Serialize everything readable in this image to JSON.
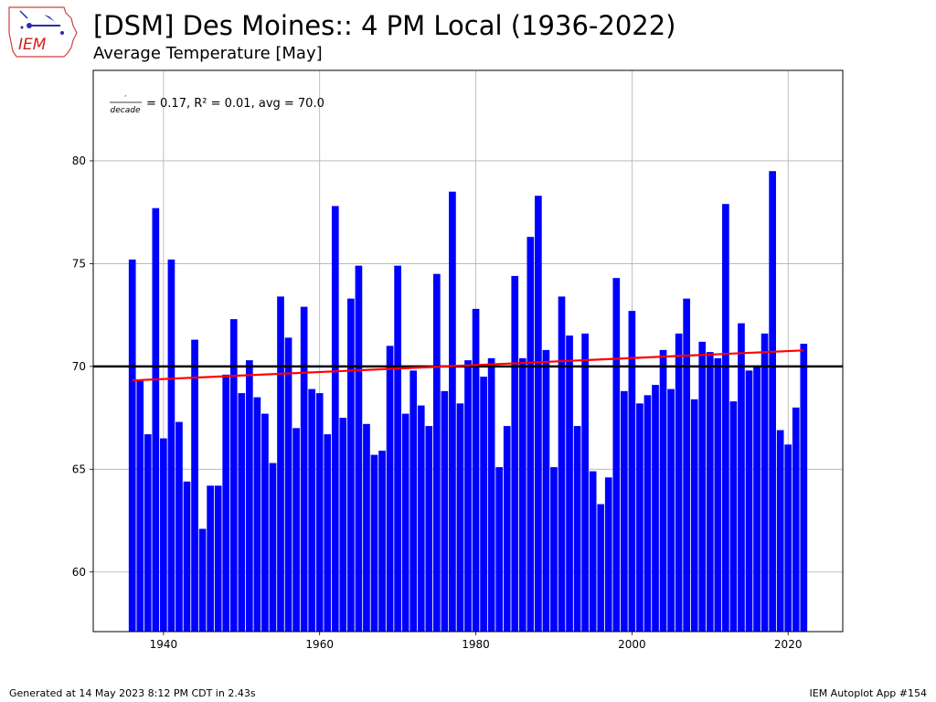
{
  "header": {
    "title": "[DSM] Des Moines:: 4 PM Local (1936-2022)",
    "subtitle": "Average Temperature [May]"
  },
  "logo": {
    "icon": "iem-logo-icon",
    "text": "IEM"
  },
  "footer": {
    "generated": "Generated at 14 May 2023 8:12 PM CDT in 2.43s",
    "app": "IEM Autoplot App #154"
  },
  "chart_data": {
    "type": "bar",
    "title": "[DSM] Des Moines:: 4 PM Local (1936-2022)",
    "subtitle": "Average Temperature [May]",
    "xlabel": "",
    "ylabel": "",
    "xlim": [
      1931,
      2027
    ],
    "ylim": [
      57.1,
      84.4
    ],
    "x_ticks": [
      1940,
      1960,
      1980,
      2000,
      2020
    ],
    "y_ticks": [
      60,
      65,
      70,
      75,
      80
    ],
    "grid": true,
    "bar_color": "#0000ff",
    "x": [
      1936,
      1937,
      1938,
      1939,
      1940,
      1941,
      1942,
      1943,
      1944,
      1945,
      1946,
      1947,
      1948,
      1949,
      1950,
      1951,
      1952,
      1953,
      1954,
      1955,
      1956,
      1957,
      1958,
      1959,
      1960,
      1961,
      1962,
      1963,
      1964,
      1965,
      1966,
      1967,
      1968,
      1969,
      1970,
      1971,
      1972,
      1973,
      1974,
      1975,
      1976,
      1977,
      1978,
      1979,
      1980,
      1981,
      1982,
      1983,
      1984,
      1985,
      1986,
      1987,
      1988,
      1989,
      1990,
      1991,
      1992,
      1993,
      1994,
      1995,
      1996,
      1997,
      1998,
      1999,
      2000,
      2001,
      2002,
      2003,
      2004,
      2005,
      2006,
      2007,
      2008,
      2009,
      2010,
      2011,
      2012,
      2013,
      2014,
      2015,
      2016,
      2017,
      2018,
      2019,
      2020,
      2021,
      2022
    ],
    "values": [
      75.2,
      69.3,
      66.7,
      77.7,
      66.5,
      75.2,
      67.3,
      64.4,
      71.3,
      62.1,
      64.2,
      64.2,
      69.6,
      72.3,
      68.7,
      70.3,
      68.5,
      67.7,
      65.3,
      73.4,
      71.4,
      67.0,
      72.9,
      68.9,
      68.7,
      66.7,
      77.8,
      67.5,
      73.3,
      74.9,
      67.2,
      65.7,
      65.9,
      71.0,
      74.9,
      67.7,
      69.8,
      68.1,
      67.1,
      74.5,
      68.8,
      78.5,
      68.2,
      70.3,
      72.8,
      69.5,
      70.4,
      65.1,
      67.1,
      74.4,
      70.4,
      76.3,
      78.3,
      70.8,
      65.1,
      73.4,
      71.5,
      67.1,
      71.6,
      64.9,
      63.3,
      64.6,
      74.3,
      68.8,
      72.7,
      68.2,
      68.6,
      69.1,
      70.8,
      68.9,
      71.6,
      73.3,
      68.4,
      71.2,
      70.7,
      70.4,
      77.9,
      68.3,
      72.1,
      69.8,
      70.0,
      71.6,
      79.5,
      66.9,
      66.2,
      68.0,
      71.1
    ],
    "average": {
      "value": 70.0,
      "color": "#000000"
    },
    "trendline": {
      "color": "#ff0000",
      "x": [
        1936,
        2022
      ],
      "y": [
        69.32,
        70.78
      ]
    },
    "annotation": {
      "numerator": "·",
      "denominator": "decade",
      "text": "= 0.17, R² = 0.01, avg = 70.0"
    }
  }
}
